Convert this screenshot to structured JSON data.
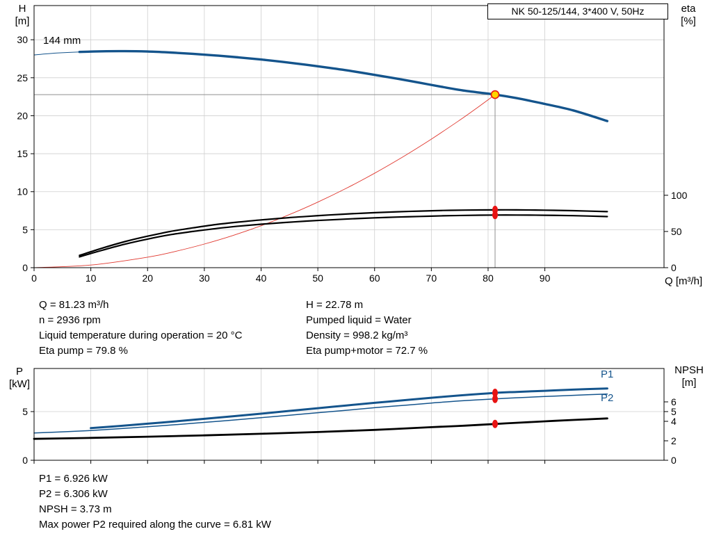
{
  "title_box": {
    "text": "NK 50-125/144, 3*400 V, 50Hz"
  },
  "colors": {
    "curve_blue": "#14548c",
    "curve_black": "#000000",
    "system_red": "#e0372e",
    "dot_red": "#e81313",
    "duty_yellow": "#ffd500",
    "grid": "#cfcfcf",
    "guide": "#8f8f8f",
    "axis": "#000000"
  },
  "annotations": {
    "top_left": [
      "Q = 81.23 m³/h",
      "n = 2936 rpm",
      "Liquid temperature during operation = 20 °C",
      "Eta pump = 79.8 %"
    ],
    "top_right": [
      "H = 22.78 m",
      "Pumped liquid = Water",
      "Density = 998.2 kg/m³",
      "Eta pump+motor = 72.7 %"
    ],
    "bottom": [
      "P1 = 6.926 kW",
      "P2 = 6.306 kW",
      "NPSH = 3.73 m",
      "Max power P2 required along the curve = 6.81 kW"
    ]
  },
  "curve_labels": {
    "impeller": "144 mm",
    "p1": "P1",
    "p2": "P2"
  },
  "chart_data": [
    {
      "type": "line",
      "name": "hq-eta-chart",
      "title": "NK 50-125/144, 3*400 V, 50Hz",
      "x_axis": {
        "name": "Q [m³/h]",
        "range": [
          0,
          111
        ],
        "ticks": [
          0,
          10,
          20,
          30,
          40,
          50,
          60,
          70,
          80,
          90
        ],
        "show_labels": true
      },
      "y_left": {
        "name": "H",
        "unit": "[m]",
        "range": [
          0,
          34.5
        ],
        "ticks": [
          0,
          5,
          10,
          15,
          20,
          25,
          30
        ]
      },
      "y_right": {
        "name": "eta",
        "unit": "[%]",
        "range": [
          0,
          362
        ],
        "ticks": [
          0,
          50,
          100
        ]
      },
      "grid": true,
      "legend_position": "none",
      "series": [
        {
          "name": "qh-curve-144mm",
          "label": "144 mm",
          "axis": "left",
          "color": "#14548c",
          "width": 3.4,
          "thin_before": 8,
          "points": [
            [
              0,
              28.0
            ],
            [
              4,
              28.25
            ],
            [
              8,
              28.4
            ],
            [
              12,
              28.48
            ],
            [
              16,
              28.5
            ],
            [
              20,
              28.45
            ],
            [
              24,
              28.32
            ],
            [
              28,
              28.15
            ],
            [
              32,
              27.93
            ],
            [
              36,
              27.68
            ],
            [
              40,
              27.4
            ],
            [
              44,
              27.07
            ],
            [
              48,
              26.7
            ],
            [
              52,
              26.3
            ],
            [
              56,
              25.87
            ],
            [
              60,
              25.38
            ],
            [
              64,
              24.87
            ],
            [
              68,
              24.33
            ],
            [
              72,
              23.78
            ],
            [
              76,
              23.28
            ],
            [
              81.23,
              22.78
            ],
            [
              85,
              22.32
            ],
            [
              90,
              21.55
            ],
            [
              95,
              20.7
            ],
            [
              101,
              19.3
            ]
          ]
        },
        {
          "name": "system-curve",
          "label": "system curve",
          "axis": "left",
          "color": "#e0372e",
          "width": 0.9,
          "points": [
            [
              0,
              0
            ],
            [
              10,
              0.35
            ],
            [
              20,
              1.38
            ],
            [
              25,
              2.16
            ],
            [
              30,
              3.11
            ],
            [
              35,
              4.23
            ],
            [
              40,
              5.52
            ],
            [
              45,
              6.99
            ],
            [
              50,
              8.63
            ],
            [
              55,
              10.44
            ],
            [
              60,
              12.43
            ],
            [
              65,
              14.59
            ],
            [
              70,
              16.92
            ],
            [
              75,
              19.42
            ],
            [
              78,
              21.0
            ],
            [
              81.23,
              22.78
            ]
          ]
        },
        {
          "name": "eta-pump-curve",
          "label": "Eta pump",
          "axis": "right",
          "color": "#000000",
          "width": 2.2,
          "points": [
            [
              8,
              17
            ],
            [
              12,
              27
            ],
            [
              16,
              36
            ],
            [
              20,
              43.5
            ],
            [
              24,
              50
            ],
            [
              28,
              55
            ],
            [
              32,
              59.5
            ],
            [
              36,
              63
            ],
            [
              40,
              66
            ],
            [
              44,
              68.6
            ],
            [
              48,
              70.8
            ],
            [
              52,
              72.8
            ],
            [
              56,
              74.5
            ],
            [
              60,
              76
            ],
            [
              64,
              77.2
            ],
            [
              68,
              78.2
            ],
            [
              72,
              79
            ],
            [
              76,
              79.5
            ],
            [
              81.23,
              79.8
            ],
            [
              85,
              79.8
            ],
            [
              90,
              79.4
            ],
            [
              95,
              78.7
            ],
            [
              101,
              77.4
            ]
          ]
        },
        {
          "name": "eta-pump-motor-curve",
          "label": "Eta pump+motor",
          "axis": "right",
          "color": "#000000",
          "width": 2.2,
          "points": [
            [
              8,
              15
            ],
            [
              12,
              24
            ],
            [
              16,
              32.5
            ],
            [
              20,
              39.5
            ],
            [
              24,
              45.5
            ],
            [
              28,
              50
            ],
            [
              32,
              54
            ],
            [
              36,
              57.3
            ],
            [
              40,
              60
            ],
            [
              44,
              62.3
            ],
            [
              48,
              64.3
            ],
            [
              52,
              66
            ],
            [
              56,
              67.5
            ],
            [
              60,
              68.8
            ],
            [
              64,
              69.9
            ],
            [
              68,
              70.8
            ],
            [
              72,
              71.6
            ],
            [
              76,
              72.2
            ],
            [
              81.23,
              72.7
            ],
            [
              85,
              72.7
            ],
            [
              90,
              72.4
            ],
            [
              95,
              71.8
            ],
            [
              101,
              70.6
            ]
          ]
        }
      ],
      "duty": {
        "x": 81.23,
        "point": {
          "axis": "left",
          "y": 22.78
        },
        "guides": true,
        "dots": [
          {
            "axis": "right",
            "y": 79.8
          },
          {
            "axis": "right",
            "y": 72.7
          }
        ]
      }
    },
    {
      "type": "line",
      "name": "power-npsh-chart",
      "x_axis": {
        "name": "Q [m³/h]",
        "range": [
          0,
          111
        ],
        "ticks": [
          0,
          10,
          20,
          30,
          40,
          50,
          60,
          70,
          80,
          90
        ],
        "show_labels": false
      },
      "y_left": {
        "name": "P",
        "unit": "[kW]",
        "range": [
          0,
          9.43
        ],
        "ticks": [
          0,
          5
        ]
      },
      "y_right": {
        "name": "NPSH",
        "unit": "[m]",
        "range": [
          0,
          9.43
        ],
        "ticks": [
          0,
          2,
          4,
          5,
          6
        ]
      },
      "grid": true,
      "legend_position": "right-inline",
      "series": [
        {
          "name": "p1-curve",
          "label": "P1",
          "axis": "left",
          "color": "#14548c",
          "width": 3.0,
          "points": [
            [
              10,
              3.3
            ],
            [
              15,
              3.52
            ],
            [
              20,
              3.76
            ],
            [
              25,
              4.0
            ],
            [
              30,
              4.26
            ],
            [
              35,
              4.52
            ],
            [
              40,
              4.79
            ],
            [
              45,
              5.07
            ],
            [
              50,
              5.35
            ],
            [
              55,
              5.63
            ],
            [
              60,
              5.9
            ],
            [
              65,
              6.16
            ],
            [
              70,
              6.42
            ],
            [
              75,
              6.66
            ],
            [
              81.23,
              6.926
            ],
            [
              85,
              7.02
            ],
            [
              90,
              7.14
            ],
            [
              95,
              7.26
            ],
            [
              101,
              7.38
            ]
          ]
        },
        {
          "name": "p2-curve",
          "label": "P2",
          "axis": "left",
          "color": "#14548c",
          "width": 1.5,
          "points": [
            [
              0,
              2.8
            ],
            [
              5,
              2.92
            ],
            [
              10,
              3.06
            ],
            [
              15,
              3.24
            ],
            [
              20,
              3.44
            ],
            [
              25,
              3.66
            ],
            [
              30,
              3.89
            ],
            [
              35,
              4.13
            ],
            [
              40,
              4.38
            ],
            [
              45,
              4.63
            ],
            [
              50,
              4.89
            ],
            [
              55,
              5.14
            ],
            [
              60,
              5.4
            ],
            [
              65,
              5.64
            ],
            [
              70,
              5.88
            ],
            [
              75,
              6.1
            ],
            [
              81.23,
              6.306
            ],
            [
              85,
              6.42
            ],
            [
              90,
              6.55
            ],
            [
              95,
              6.67
            ],
            [
              101,
              6.81
            ]
          ]
        },
        {
          "name": "npsh-curve",
          "label": "NPSH",
          "axis": "right",
          "color": "#000000",
          "width": 2.8,
          "points": [
            [
              0,
              2.2
            ],
            [
              10,
              2.3
            ],
            [
              20,
              2.42
            ],
            [
              30,
              2.56
            ],
            [
              40,
              2.72
            ],
            [
              50,
              2.9
            ],
            [
              60,
              3.12
            ],
            [
              70,
              3.4
            ],
            [
              76,
              3.56
            ],
            [
              81.23,
              3.73
            ],
            [
              85,
              3.85
            ],
            [
              90,
              4.0
            ],
            [
              95,
              4.14
            ],
            [
              101,
              4.3
            ]
          ]
        }
      ],
      "duty": {
        "x": 81.23,
        "guides": false,
        "dots": [
          {
            "axis": "left",
            "y": 6.926
          },
          {
            "axis": "left",
            "y": 6.306
          },
          {
            "axis": "right",
            "y": 3.73
          }
        ]
      }
    }
  ],
  "duty_values": {
    "q_m3h": 81.23,
    "h_m": 22.78,
    "n_rpm": 2936,
    "eta_pump_pct": 79.8,
    "eta_pump_motor_pct": 72.7,
    "p1_kw": 6.926,
    "p2_kw": 6.306,
    "npsh_m": 3.73,
    "max_p2_kw": 6.81,
    "density_kg_m3": 998.2,
    "liquid_temp_c": 20
  }
}
